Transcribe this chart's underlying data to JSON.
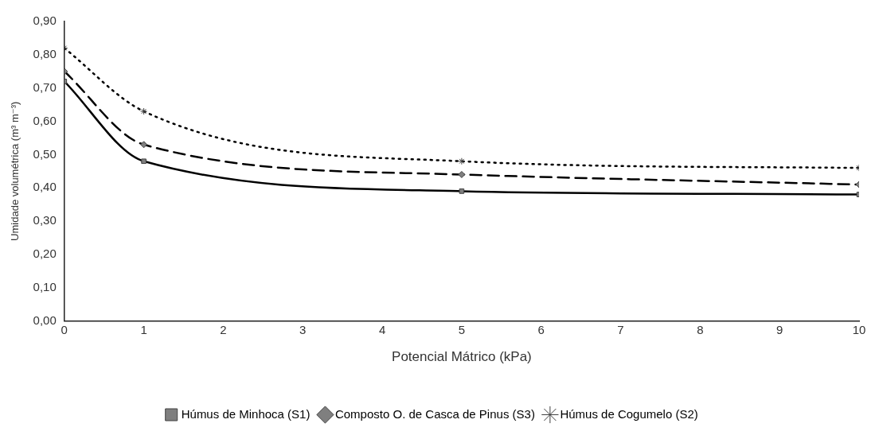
{
  "chart_data": {
    "type": "line",
    "xlabel": "Potencial Mátrico (kPa)",
    "ylabel": "Umidade volumétrica (m³ m⁻³)",
    "x": [
      0,
      1,
      5,
      10
    ],
    "series": [
      {
        "name": "Húmus de Minhoca (S1)",
        "color": "#000000",
        "values": [
          0.72,
          0.48,
          0.39,
          0.38
        ],
        "marker": "square",
        "line_style": "solid"
      },
      {
        "name": "Composto O. de Casca de Pinus (S3)",
        "color": "#000000",
        "values": [
          0.75,
          0.53,
          0.44,
          0.41
        ],
        "marker": "diamond",
        "line_style": "dashed"
      },
      {
        "name": "Húmus de Cogumelo (S2)",
        "color": "#000000",
        "values": [
          0.82,
          0.63,
          0.48,
          0.46
        ],
        "marker": "cross",
        "line_style": "dotted"
      }
    ],
    "xlim": [
      0,
      10
    ],
    "xticks": [
      0,
      1,
      2,
      3,
      4,
      5,
      6,
      7,
      8,
      9,
      10
    ],
    "ylim": [
      0,
      0.9
    ],
    "yticks": [
      {
        "value": 0,
        "label": "0,00"
      },
      {
        "value": 0.1,
        "label": "0,10"
      },
      {
        "value": 0.2,
        "label": "0,20"
      },
      {
        "value": 0.3,
        "label": "0,30"
      },
      {
        "value": 0.4,
        "label": "0,40"
      },
      {
        "value": 0.5,
        "label": "0,50"
      },
      {
        "value": 0.6,
        "label": "0,60"
      },
      {
        "value": 0.7,
        "label": "0,70"
      },
      {
        "value": 0.8,
        "label": "0,80"
      },
      {
        "value": 0.9,
        "label": "0,90"
      }
    ],
    "grid": false,
    "legend": "bottom"
  }
}
